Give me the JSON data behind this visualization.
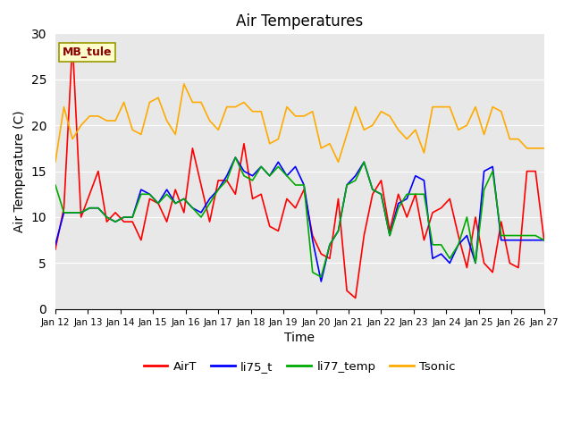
{
  "title": "Air Temperatures",
  "xlabel": "Time",
  "ylabel": "Air Temperature (C)",
  "annotation": "MB_tule",
  "ylim": [
    0,
    30
  ],
  "yticks": [
    0,
    5,
    10,
    15,
    20,
    25,
    30
  ],
  "x_labels": [
    "Jan 12",
    "Jan 13",
    "Jan 14",
    "Jan 15",
    "Jan 16",
    "Jan 17",
    "Jan 18",
    "Jan 19",
    "Jan 20",
    "Jan 21",
    "Jan 22",
    "Jan 23",
    "Jan 24",
    "Jan 25",
    "Jan 26",
    "Jan 27"
  ],
  "AirT": [
    6.5,
    11.0,
    29.0,
    10.0,
    12.5,
    15.0,
    9.5,
    10.5,
    9.5,
    9.5,
    7.5,
    12.0,
    11.5,
    9.5,
    13.0,
    10.5,
    17.5,
    13.5,
    9.5,
    14.0,
    14.0,
    12.5,
    18.0,
    12.0,
    12.5,
    9.0,
    8.5,
    12.0,
    11.0,
    13.0,
    8.0,
    6.0,
    5.5,
    12.0,
    2.0,
    1.2,
    8.0,
    12.5,
    14.0,
    8.5,
    12.5,
    10.0,
    12.5,
    7.5,
    10.5,
    11.0,
    12.0,
    8.0,
    4.5,
    10.0,
    5.0,
    4.0,
    9.5,
    5.0,
    4.5,
    15.0,
    15.0,
    7.5
  ],
  "li75_t": [
    7.0,
    10.5,
    10.5,
    10.5,
    11.0,
    11.0,
    10.0,
    9.5,
    10.0,
    10.0,
    13.0,
    12.5,
    11.5,
    13.0,
    11.5,
    12.0,
    11.0,
    10.5,
    12.0,
    13.0,
    14.5,
    16.5,
    15.0,
    14.5,
    15.5,
    14.5,
    16.0,
    14.5,
    15.5,
    13.5,
    7.5,
    3.0,
    7.0,
    8.5,
    13.5,
    14.5,
    16.0,
    13.0,
    12.5,
    8.0,
    11.5,
    12.0,
    14.5,
    14.0,
    5.5,
    6.0,
    5.0,
    7.0,
    8.0,
    5.0,
    15.0,
    15.5,
    7.5,
    7.5,
    7.5,
    7.5,
    7.5,
    7.5
  ],
  "li77_temp": [
    13.5,
    10.5,
    10.5,
    10.5,
    11.0,
    11.0,
    10.0,
    9.5,
    10.0,
    10.0,
    12.5,
    12.5,
    11.5,
    12.5,
    11.5,
    12.0,
    11.0,
    10.0,
    11.5,
    13.0,
    14.0,
    16.5,
    14.5,
    14.0,
    15.5,
    14.5,
    15.5,
    14.5,
    13.5,
    13.5,
    4.0,
    3.5,
    7.0,
    8.5,
    13.5,
    14.0,
    16.0,
    13.0,
    12.5,
    8.0,
    11.0,
    12.5,
    12.5,
    12.5,
    7.0,
    7.0,
    5.5,
    7.0,
    10.0,
    5.0,
    13.0,
    15.0,
    8.0,
    8.0,
    8.0,
    8.0,
    8.0,
    7.5
  ],
  "Tsonic": [
    16.0,
    22.0,
    18.5,
    20.0,
    21.0,
    21.0,
    20.5,
    20.5,
    22.5,
    19.5,
    19.0,
    22.5,
    23.0,
    20.5,
    19.0,
    24.5,
    22.5,
    22.5,
    20.5,
    19.5,
    22.0,
    22.0,
    22.5,
    21.5,
    21.5,
    18.0,
    18.5,
    22.0,
    21.0,
    21.0,
    21.5,
    17.5,
    18.0,
    16.0,
    19.0,
    22.0,
    19.5,
    20.0,
    21.5,
    21.0,
    19.5,
    18.5,
    19.5,
    17.0,
    22.0,
    22.0,
    22.0,
    19.5,
    20.0,
    22.0,
    19.0,
    22.0,
    21.5,
    18.5,
    18.5,
    17.5,
    17.5,
    17.5
  ],
  "colors": {
    "AirT": "#ff0000",
    "li75_t": "#0000ff",
    "li77_temp": "#00aa00",
    "Tsonic": "#ffaa00"
  },
  "background_color": "#e8e8e8",
  "fig_background": "#ffffff",
  "n_points": 58,
  "title_fontsize": 12,
  "axis_label_fontsize": 10
}
